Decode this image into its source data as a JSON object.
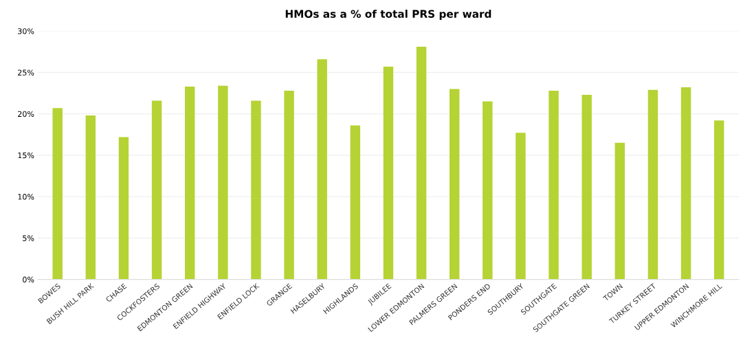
{
  "chart_data": {
    "type": "bar",
    "title": "HMOs as a % of total PRS per ward",
    "categories": [
      "BOWES",
      "BUSH HILL PARK",
      "CHASE",
      "COCKFOSTERS",
      "EDMONTON GREEN",
      "ENFIELD HIGHWAY",
      "ENFIELD LOCK",
      "GRANGE",
      "HASELBURY",
      "HIGHLANDS",
      "JUBILEE",
      "LOWER EDMONTON",
      "PALMERS GREEN",
      "PONDERS END",
      "SOUTHBURY",
      "SOUTHGATE",
      "SOUTHGATE GREEN",
      "TOWN",
      "TURKEY STREET",
      "UPPER EDMONTON",
      "WINCHMORE HILL"
    ],
    "values": [
      20.7,
      19.8,
      17.2,
      21.6,
      23.3,
      23.4,
      21.6,
      22.8,
      26.6,
      18.6,
      25.7,
      28.1,
      23.0,
      21.5,
      17.7,
      22.8,
      22.3,
      16.5,
      22.9,
      23.2,
      19.2
    ],
    "color": "#b5d334",
    "ylim": [
      0,
      30
    ],
    "yticks": [
      {
        "value": 0,
        "label": "0%"
      },
      {
        "value": 5,
        "label": "5%"
      },
      {
        "value": 10,
        "label": "10%"
      },
      {
        "value": 15,
        "label": "15%"
      },
      {
        "value": 20,
        "label": "20%"
      },
      {
        "value": 25,
        "label": "25%"
      },
      {
        "value": 30,
        "label": "30%"
      }
    ],
    "grid": "y"
  }
}
